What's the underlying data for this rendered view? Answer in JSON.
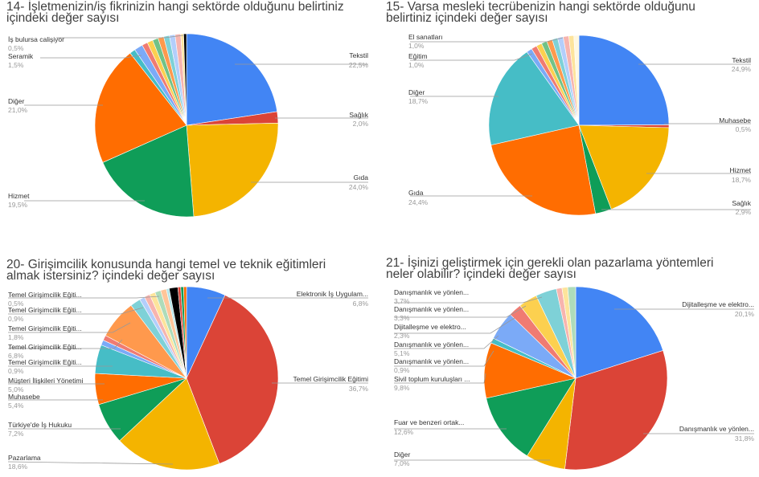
{
  "colors": {
    "palette": [
      "#4285f4",
      "#db4437",
      "#f4b400",
      "#0f9d58",
      "#ff6d01",
      "#46bdc6",
      "#7baaf7",
      "#f07b72",
      "#fcd04f",
      "#71c287",
      "#ff994d",
      "#7ed1d7",
      "#b3cefb",
      "#f7b4ae",
      "#fde49b",
      "#aedcba",
      "#ffc599",
      "#b5e5e8",
      "#ecf3fe",
      "#fdf0ef",
      "#fff8e1",
      "#000000"
    ],
    "label_text": "#333333",
    "value_text": "#999999",
    "leader": "#999999"
  },
  "charts": [
    {
      "title_line1": "14- İşletmenizin/iş fikrinizin hangi sektörde olduğunu belirtiniz",
      "title_line2": "içindeki değer sayısı",
      "labels": [
        {
          "name": "İş bulursa calişiyor",
          "value": "0,5%"
        },
        {
          "name": "Seramik",
          "value": "1,5%"
        },
        {
          "name": "Diğer",
          "value": "21,0%"
        },
        {
          "name": "Hizmet",
          "value": "19,5%"
        },
        {
          "name": "Tekstil",
          "value": "22,5%"
        },
        {
          "name": "Sağlık",
          "value": "2,0%"
        },
        {
          "name": "Gıda",
          "value": "24,0%"
        }
      ]
    },
    {
      "title_line1": "15- Varsa mesleki tecrübenizin hangi sektörde olduğunu",
      "title_line2": "belirtiniz içindeki değer sayısı",
      "labels": [
        {
          "name": "El sanatları",
          "value": "1,0%"
        },
        {
          "name": "Eğitim",
          "value": "1,0%"
        },
        {
          "name": "Diğer",
          "value": "18,7%"
        },
        {
          "name": "Gıda",
          "value": "24,4%"
        },
        {
          "name": "Tekstil",
          "value": "24,9%"
        },
        {
          "name": "Muhasebe",
          "value": "0,5%"
        },
        {
          "name": "Hizmet",
          "value": "18,7%"
        },
        {
          "name": "Sağlık",
          "value": "2,9%"
        }
      ]
    },
    {
      "title_line1": "20- Girişimcilik konusunda hangi temel ve teknik eğitimleri",
      "title_line2": "almak istersiniz? içindeki değer sayısı",
      "labels": [
        {
          "name": "Temel Girişimcilik Eğiti...",
          "value": "0,5%"
        },
        {
          "name": "Temel Girişimcilik Eğiti...",
          "value": "0,9%"
        },
        {
          "name": "Temel Girişimcilik Eğiti...",
          "value": "1,8%"
        },
        {
          "name": "Temel Girişimcilik Eğiti...",
          "value": "6,8%"
        },
        {
          "name": "Temel Girişimcilik Eğiti...",
          "value": "0,9%"
        },
        {
          "name": "Müşteri İlişkileri Yönetimi",
          "value": "5,0%"
        },
        {
          "name": "Muhasebe",
          "value": "5,4%"
        },
        {
          "name": "Türkiye'de İş Hukuku",
          "value": "7,2%"
        },
        {
          "name": "Pazarlama",
          "value": "18,6%"
        },
        {
          "name": "Elektronik İş Uygulam...",
          "value": "6,8%"
        },
        {
          "name": "Temel Girişimcilik Eğitimi",
          "value": "36,7%"
        }
      ]
    },
    {
      "title_line1": "21- İşinizi geliştirmek için gerekli olan pazarlama yöntemleri",
      "title_line2": "neler olabilir? içindeki değer sayısı",
      "labels": [
        {
          "name": "Danışmanlık ve yönlen...",
          "value": "3,7%"
        },
        {
          "name": "Danışmanlık ve yönlen...",
          "value": "3,3%"
        },
        {
          "name": "Dijitalleşme ve elektro...",
          "value": "2,3%"
        },
        {
          "name": "Danışmanlık ve yönlen...",
          "value": "5,1%"
        },
        {
          "name": "Danışmanlık ve yönlen...",
          "value": "0,9%"
        },
        {
          "name": "Sivil toplum kuruluşları ...",
          "value": "9,8%"
        },
        {
          "name": "Fuar ve benzeri ortak...",
          "value": "12,6%"
        },
        {
          "name": "Diğer",
          "value": "7,0%"
        },
        {
          "name": "Dijitalleşme ve elektro...",
          "value": "20,1%"
        },
        {
          "name": "Danışmanlık ve yönlen...",
          "value": "31,8%"
        }
      ]
    }
  ],
  "chart_data": [
    {
      "type": "pie",
      "title": "14- İşletmenizin/iş fikrinizin hangi sektörde olduğunu belirtiniz içindeki değer sayısı",
      "start": "top, clockwise",
      "slices": [
        {
          "label": "Tekstil",
          "value": 22.5,
          "color": "#4285f4"
        },
        {
          "label": "Sağlık",
          "value": 2.0,
          "color": "#db4437"
        },
        {
          "label": "Gıda",
          "value": 24.0,
          "color": "#f4b400"
        },
        {
          "label": "Hizmet",
          "value": 19.5,
          "color": "#0f9d58"
        },
        {
          "label": "Diğer",
          "value": 21.0,
          "color": "#ff6d01"
        },
        {
          "label": "",
          "value": 1.0,
          "color": "#46bdc6"
        },
        {
          "label": "Seramik",
          "value": 1.5,
          "color": "#7baaf7"
        },
        {
          "label": "",
          "value": 1.0,
          "color": "#f07b72"
        },
        {
          "label": "",
          "value": 1.0,
          "color": "#fcd04f"
        },
        {
          "label": "",
          "value": 1.0,
          "color": "#71c287"
        },
        {
          "label": "",
          "value": 1.0,
          "color": "#ff994d"
        },
        {
          "label": "",
          "value": 1.0,
          "color": "#7ed1d7"
        },
        {
          "label": "",
          "value": 1.0,
          "color": "#b3cefb"
        },
        {
          "label": "",
          "value": 1.0,
          "color": "#f7b4ae"
        },
        {
          "label": "",
          "value": 0.5,
          "color": "#fde49b"
        },
        {
          "label": "İş bulursa calişiyor",
          "value": 0.5,
          "color": "#000000"
        }
      ]
    },
    {
      "type": "pie",
      "title": "15- Varsa mesleki tecrübenizin hangi sektörde olduğunu belirtiniz içindeki değer sayısı",
      "start": "top, clockwise",
      "slices": [
        {
          "label": "Tekstil",
          "value": 24.9,
          "color": "#4285f4"
        },
        {
          "label": "Muhasebe",
          "value": 0.5,
          "color": "#db4437"
        },
        {
          "label": "Hizmet",
          "value": 18.7,
          "color": "#f4b400"
        },
        {
          "label": "Sağlık",
          "value": 2.9,
          "color": "#0f9d58"
        },
        {
          "label": "Gıda",
          "value": 24.4,
          "color": "#ff6d01"
        },
        {
          "label": "Diğer",
          "value": 18.7,
          "color": "#46bdc6"
        },
        {
          "label": "Eğitim",
          "value": 1.0,
          "color": "#7baaf7"
        },
        {
          "label": "",
          "value": 1.0,
          "color": "#f07b72"
        },
        {
          "label": "",
          "value": 1.0,
          "color": "#fcd04f"
        },
        {
          "label": "El sanatları",
          "value": 1.0,
          "color": "#71c287"
        },
        {
          "label": "",
          "value": 1.0,
          "color": "#ff994d"
        },
        {
          "label": "",
          "value": 1.0,
          "color": "#7ed1d7"
        },
        {
          "label": "",
          "value": 1.0,
          "color": "#b3cefb"
        },
        {
          "label": "",
          "value": 1.0,
          "color": "#f7b4ae"
        },
        {
          "label": "",
          "value": 0.9,
          "color": "#fde49b"
        },
        {
          "label": "",
          "value": 0.9,
          "color": "#fff8e1"
        }
      ]
    },
    {
      "type": "pie",
      "title": "20- Girişimcilik konusunda hangi temel ve teknik eğitimleri almak istersiniz? içindeki değer sayısı",
      "start": "top, clockwise",
      "slices": [
        {
          "label": "Elektronik İş Uygulam...",
          "value": 6.8,
          "color": "#4285f4"
        },
        {
          "label": "Temel Girişimcilik Eğitimi",
          "value": 36.7,
          "color": "#db4437"
        },
        {
          "label": "Pazarlama",
          "value": 18.6,
          "color": "#f4b400"
        },
        {
          "label": "Türkiye'de İş Hukuku",
          "value": 7.2,
          "color": "#0f9d58"
        },
        {
          "label": "Muhasebe",
          "value": 5.4,
          "color": "#ff6d01"
        },
        {
          "label": "Müşteri İlişkileri Yönetimi",
          "value": 5.0,
          "color": "#46bdc6"
        },
        {
          "label": "Temel Girişimcilik Eğiti...",
          "value": 0.9,
          "color": "#7baaf7"
        },
        {
          "label": "",
          "value": 0.9,
          "color": "#f07b72"
        },
        {
          "label": "Temel Girişimcilik Eğiti...",
          "value": 6.8,
          "color": "#ff994d"
        },
        {
          "label": "Temel Girişimcilik Eğiti...",
          "value": 1.8,
          "color": "#7ed1d7"
        },
        {
          "label": "Temel Girişimcilik Eğiti...",
          "value": 0.9,
          "color": "#b3cefb"
        },
        {
          "label": "",
          "value": 1.0,
          "color": "#f7b4ae"
        },
        {
          "label": "",
          "value": 1.0,
          "color": "#fde49b"
        },
        {
          "label": "",
          "value": 1.0,
          "color": "#aedcba"
        },
        {
          "label": "",
          "value": 1.0,
          "color": "#ffc599"
        },
        {
          "label": "Temel Girişimcilik Eğiti...",
          "value": 0.5,
          "color": "#b5e5e8"
        },
        {
          "label": "",
          "value": 1.5,
          "color": "#000000"
        },
        {
          "label": "",
          "value": 0.5,
          "color": "#db4437"
        },
        {
          "label": "",
          "value": 0.5,
          "color": "#0f9d58"
        },
        {
          "label": "",
          "value": 0.5,
          "color": "#ff6d01"
        }
      ]
    },
    {
      "type": "pie",
      "title": "21- İşinizi geliştirmek için gerekli olan pazarlama yöntemleri neler olabilir? içindeki değer sayısı",
      "start": "top, clockwise",
      "slices": [
        {
          "label": "Dijitalleşme ve elektro...",
          "value": 20.1,
          "color": "#4285f4"
        },
        {
          "label": "Danışmanlık ve yönlen...",
          "value": 31.8,
          "color": "#db4437"
        },
        {
          "label": "Diğer",
          "value": 7.0,
          "color": "#f4b400"
        },
        {
          "label": "Fuar ve benzeri ortak...",
          "value": 12.6,
          "color": "#0f9d58"
        },
        {
          "label": "Sivil toplum kuruluşları ...",
          "value": 9.8,
          "color": "#ff6d01"
        },
        {
          "label": "Danışmanlık ve yönlen...",
          "value": 0.9,
          "color": "#46bdc6"
        },
        {
          "label": "Danışmanlık ve yönlen...",
          "value": 5.1,
          "color": "#7baaf7"
        },
        {
          "label": "Dijitalleşme ve elektro...",
          "value": 2.3,
          "color": "#f07b72"
        },
        {
          "label": "Danışmanlık ve yönlen...",
          "value": 3.3,
          "color": "#fcd04f"
        },
        {
          "label": "Danışmanlık ve yönlen...",
          "value": 3.7,
          "color": "#7ed1d7"
        },
        {
          "label": "",
          "value": 1.0,
          "color": "#f7b4ae"
        },
        {
          "label": "",
          "value": 1.0,
          "color": "#fde49b"
        },
        {
          "label": "",
          "value": 1.4,
          "color": "#aedcba"
        }
      ]
    }
  ]
}
